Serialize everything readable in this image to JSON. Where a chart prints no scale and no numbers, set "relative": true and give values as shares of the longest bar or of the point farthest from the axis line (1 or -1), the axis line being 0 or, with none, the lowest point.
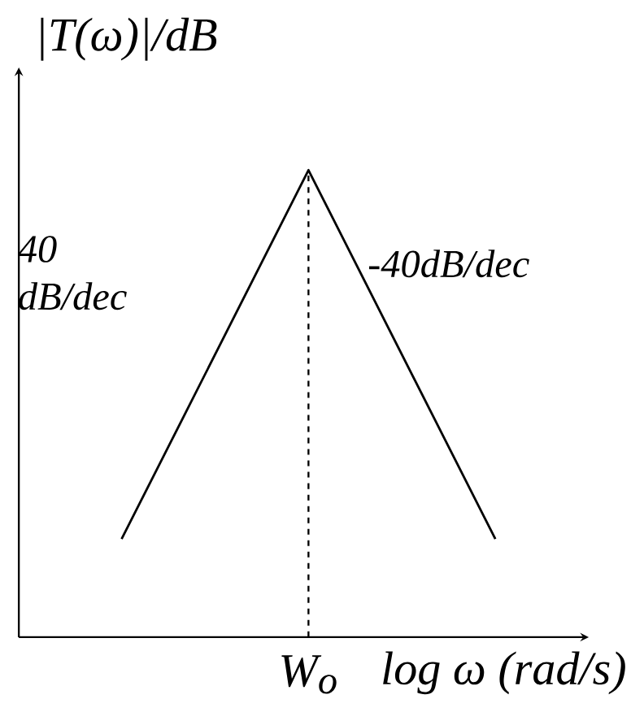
{
  "chart_data": {
    "type": "line",
    "relative": true,
    "ylabel": "|T(ω)|/dB",
    "xlabel": "log ω (rad/s)",
    "categories": [
      null,
      null,
      null
    ],
    "series": [
      {
        "color": "#000000",
        "values": [
          0.21,
          1,
          0.21
        ]
      }
    ],
    "annotations": [
      "40 dB/dec",
      "-40dB/dec",
      "W$_{o}$"
    ],
    "marker": "none",
    "line_style": "solid",
    "grid": false
  }
}
